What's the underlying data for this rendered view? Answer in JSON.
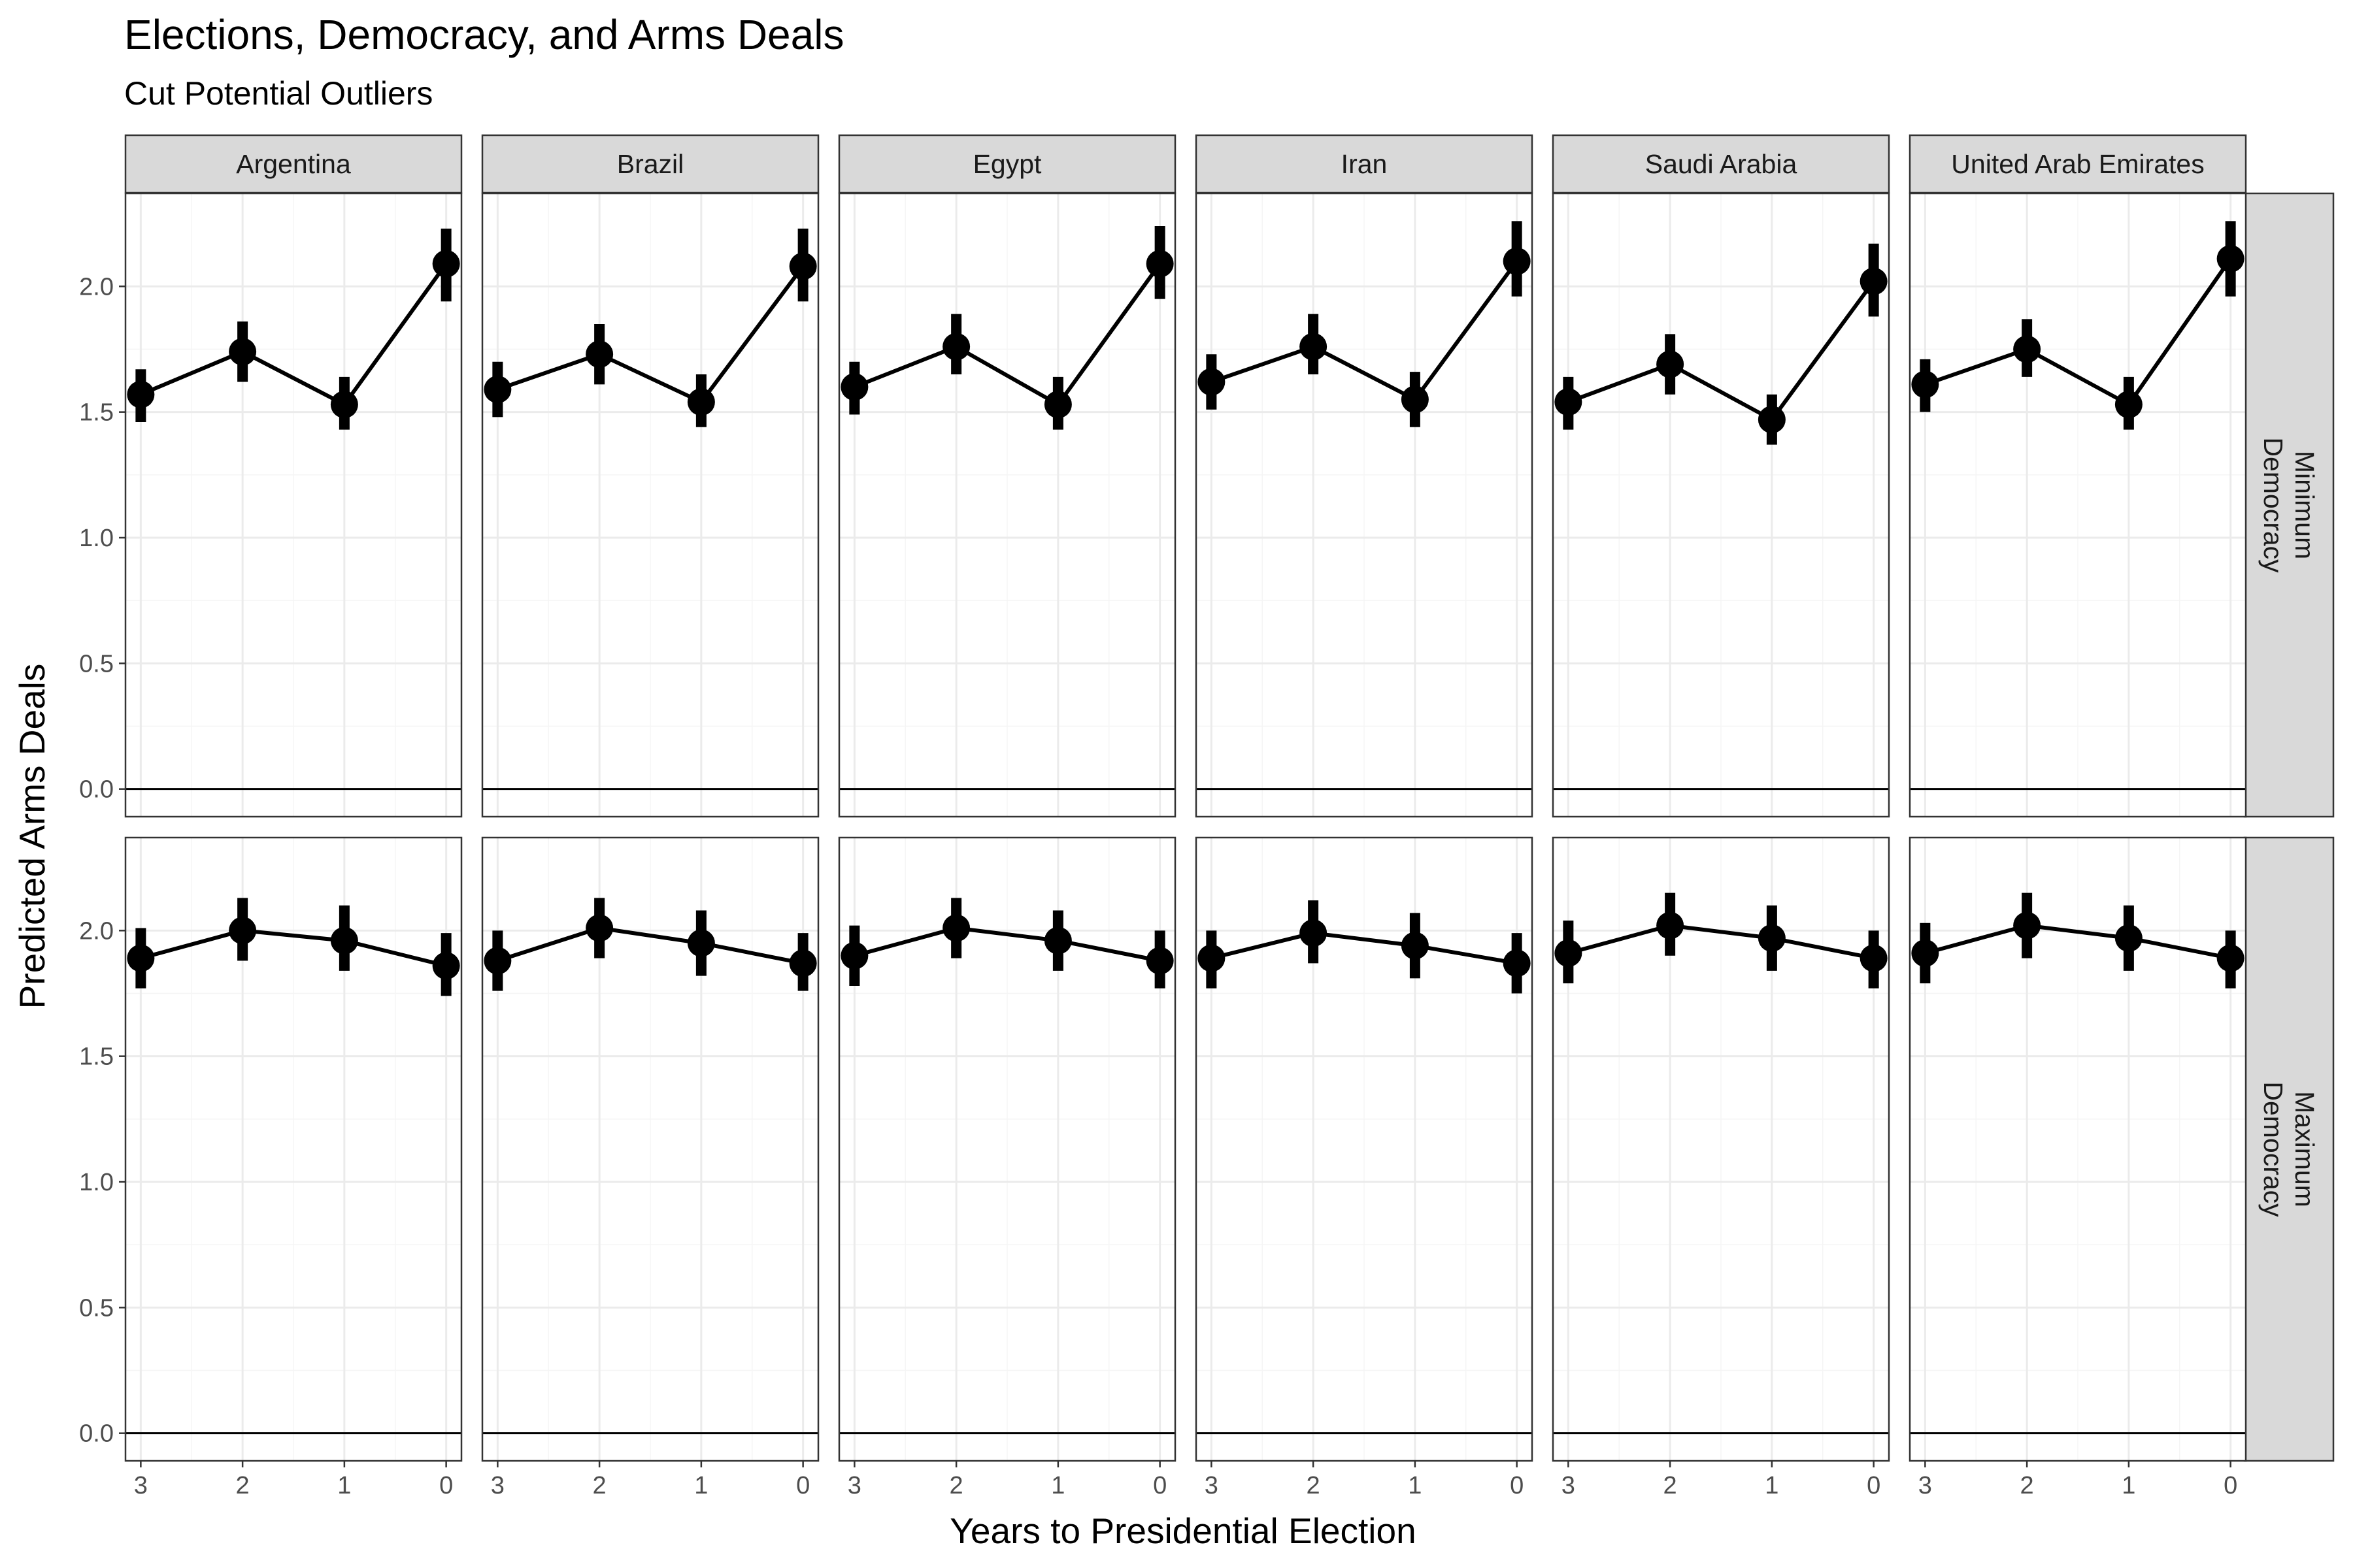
{
  "chart_data": {
    "type": "line",
    "title": "Elections, Democracy, and Arms Deals",
    "subtitle": "Cut Potential Outliers",
    "xlabel": "Years to Presidential Election",
    "ylabel": "Predicted Arms Deals",
    "x": [
      3,
      2,
      1,
      0
    ],
    "x_tick_labels": [
      "3",
      "2",
      "1",
      "0"
    ],
    "ylim": [
      -0.11,
      2.37
    ],
    "y_ticks": [
      0.0,
      0.5,
      1.0,
      1.5,
      2.0
    ],
    "y_tick_labels": [
      "0.0",
      "0.5",
      "1.0",
      "1.5",
      "2.0"
    ],
    "reference_line_y": 0,
    "grid": true,
    "theme": "bw",
    "colors": {
      "series": "#000000",
      "strip_fill": "#d9d9d9",
      "panel_border": "#333333",
      "grid_major": "#ebebeb",
      "grid_minor": "#f5f5f5"
    },
    "facet_columns": [
      "Argentina",
      "Brazil",
      "Egypt",
      "Iran",
      "Saudi Arabia",
      "United Arab Emirates"
    ],
    "facet_rows": [
      {
        "label_lines": [
          "Minimum",
          "Democracy"
        ]
      },
      {
        "label_lines": [
          "Maximum",
          "Democracy"
        ]
      }
    ],
    "panels": [
      [
        {
          "y": [
            1.57,
            1.74,
            1.53,
            2.09
          ],
          "lo": [
            1.46,
            1.62,
            1.43,
            1.94
          ],
          "hi": [
            1.67,
            1.86,
            1.64,
            2.23
          ]
        },
        {
          "y": [
            1.59,
            1.73,
            1.54,
            2.08
          ],
          "lo": [
            1.48,
            1.61,
            1.44,
            1.94
          ],
          "hi": [
            1.7,
            1.85,
            1.65,
            2.23
          ]
        },
        {
          "y": [
            1.6,
            1.76,
            1.53,
            2.09
          ],
          "lo": [
            1.49,
            1.65,
            1.43,
            1.95
          ],
          "hi": [
            1.7,
            1.89,
            1.64,
            2.24
          ]
        },
        {
          "y": [
            1.62,
            1.76,
            1.55,
            2.1
          ],
          "lo": [
            1.51,
            1.65,
            1.44,
            1.96
          ],
          "hi": [
            1.73,
            1.89,
            1.66,
            2.26
          ]
        },
        {
          "y": [
            1.54,
            1.69,
            1.47,
            2.02
          ],
          "lo": [
            1.43,
            1.57,
            1.37,
            1.88
          ],
          "hi": [
            1.64,
            1.81,
            1.57,
            2.17
          ]
        },
        {
          "y": [
            1.61,
            1.75,
            1.53,
            2.11
          ],
          "lo": [
            1.5,
            1.64,
            1.43,
            1.96
          ],
          "hi": [
            1.71,
            1.87,
            1.64,
            2.26
          ]
        }
      ],
      [
        {
          "y": [
            1.89,
            2.0,
            1.96,
            1.86
          ],
          "lo": [
            1.77,
            1.88,
            1.84,
            1.74
          ],
          "hi": [
            2.01,
            2.13,
            2.1,
            1.99
          ]
        },
        {
          "y": [
            1.88,
            2.01,
            1.95,
            1.87
          ],
          "lo": [
            1.76,
            1.89,
            1.82,
            1.76
          ],
          "hi": [
            2.0,
            2.13,
            2.08,
            1.99
          ]
        },
        {
          "y": [
            1.9,
            2.01,
            1.96,
            1.88
          ],
          "lo": [
            1.78,
            1.89,
            1.84,
            1.77
          ],
          "hi": [
            2.02,
            2.13,
            2.08,
            2.0
          ]
        },
        {
          "y": [
            1.89,
            1.99,
            1.94,
            1.87
          ],
          "lo": [
            1.77,
            1.87,
            1.81,
            1.75
          ],
          "hi": [
            2.0,
            2.12,
            2.07,
            1.99
          ]
        },
        {
          "y": [
            1.91,
            2.02,
            1.97,
            1.89
          ],
          "lo": [
            1.79,
            1.9,
            1.84,
            1.77
          ],
          "hi": [
            2.04,
            2.15,
            2.1,
            2.0
          ]
        },
        {
          "y": [
            1.91,
            2.02,
            1.97,
            1.89
          ],
          "lo": [
            1.79,
            1.89,
            1.84,
            1.77
          ],
          "hi": [
            2.03,
            2.15,
            2.1,
            2.0
          ]
        }
      ]
    ]
  }
}
